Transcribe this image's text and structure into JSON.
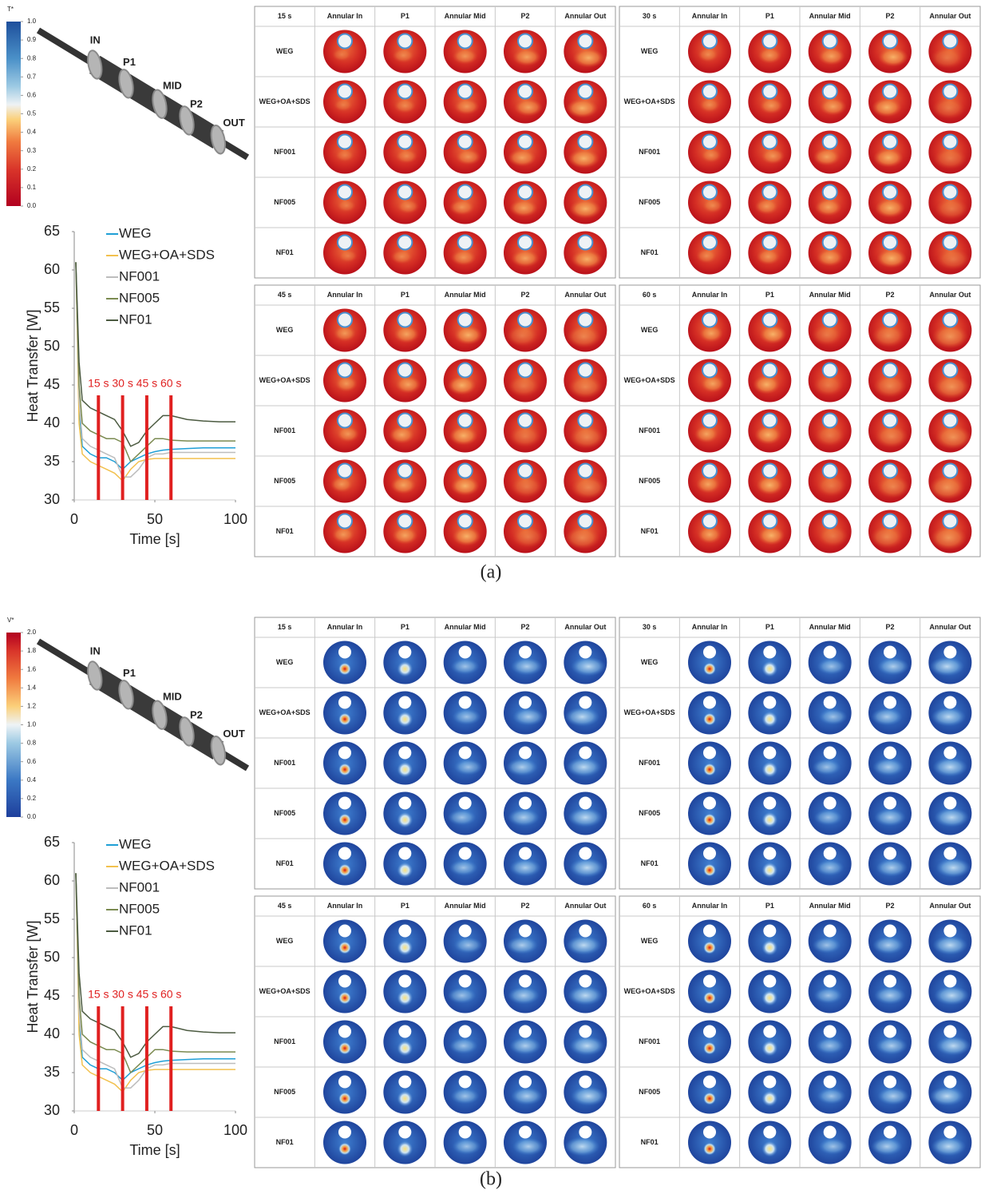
{
  "panels": [
    {
      "caption": "(a)",
      "colorbar": {
        "title": "T*",
        "ticks": [
          {
            "value": 0,
            "label": "0.0"
          },
          {
            "value": 0.1,
            "label": "0.1"
          },
          {
            "value": 0.2,
            "label": "0.2"
          },
          {
            "value": 0.3,
            "label": "0.3"
          },
          {
            "value": 0.4,
            "label": "0.4"
          },
          {
            "value": 0.5,
            "label": "0.5"
          },
          {
            "value": 0.6,
            "label": "0.6"
          },
          {
            "value": 0.7,
            "label": "0.7"
          },
          {
            "value": 0.8,
            "label": "0.8"
          },
          {
            "value": 0.9,
            "label": "0.9"
          },
          {
            "value": 1,
            "label": "1.0"
          }
        ]
      },
      "diagram": {
        "labels": [
          "IN",
          "P1",
          "MID",
          "P2",
          "OUT"
        ]
      },
      "tables": [
        {
          "corner": "15 s",
          "columns": [
            "Annular In",
            "P1",
            "Annular Mid",
            "P2",
            "Annular Out"
          ],
          "rows": [
            "WEG",
            "WEG+OA+SDS",
            "NF001",
            "NF005",
            "NF01"
          ]
        },
        {
          "corner": "30 s",
          "columns": [
            "Annular In",
            "P1",
            "Annular Mid",
            "P2",
            "Annular Out"
          ],
          "rows": [
            "WEG",
            "WEG+OA+SDS",
            "NF001",
            "NF005",
            "NF01"
          ]
        },
        {
          "corner": "45 s",
          "columns": [
            "Annular In",
            "P1",
            "Annular Mid",
            "P2",
            "Annular Out"
          ],
          "rows": [
            "WEG",
            "WEG+OA+SDS",
            "NF001",
            "NF005",
            "NF01"
          ]
        },
        {
          "corner": "60 s",
          "columns": [
            "Annular In",
            "P1",
            "Annular Mid",
            "P2",
            "Annular Out"
          ],
          "rows": [
            "WEG",
            "WEG+OA+SDS",
            "NF001",
            "NF005",
            "NF01"
          ]
        }
      ]
    },
    {
      "caption": "(b)",
      "colorbar": {
        "title": "V*",
        "ticks": [
          {
            "value": 0,
            "label": "0.0"
          },
          {
            "value": 0.2,
            "label": "0.2"
          },
          {
            "value": 0.4,
            "label": "0.4"
          },
          {
            "value": 0.6,
            "label": "0.6"
          },
          {
            "value": 0.8,
            "label": "0.8"
          },
          {
            "value": 1,
            "label": "1.0"
          },
          {
            "value": 1.2,
            "label": "1.2"
          },
          {
            "value": 1.4,
            "label": "1.4"
          },
          {
            "value": 1.6,
            "label": "1.6"
          },
          {
            "value": 1.8,
            "label": "1.8"
          },
          {
            "value": 2,
            "label": "2.0"
          }
        ]
      },
      "diagram": {
        "labels": [
          "IN",
          "P1",
          "MID",
          "P2",
          "OUT"
        ]
      },
      "tables": [
        {
          "corner": "15 s",
          "columns": [
            "Annular In",
            "P1",
            "Annular Mid",
            "P2",
            "Annular Out"
          ],
          "rows": [
            "WEG",
            "WEG+OA+SDS",
            "NF001",
            "NF005",
            "NF01"
          ]
        },
        {
          "corner": "30 s",
          "columns": [
            "Annular In",
            "P1",
            "Annular Mid",
            "P2",
            "Annular Out"
          ],
          "rows": [
            "WEG",
            "WEG+OA+SDS",
            "NF001",
            "NF005",
            "NF01"
          ]
        },
        {
          "corner": "45 s",
          "columns": [
            "Annular In",
            "P1",
            "Annular Mid",
            "P2",
            "Annular Out"
          ],
          "rows": [
            "WEG",
            "WEG+OA+SDS",
            "NF001",
            "NF005",
            "NF01"
          ]
        },
        {
          "corner": "60 s",
          "columns": [
            "Annular In",
            "P1",
            "Annular Mid",
            "P2",
            "Annular Out"
          ],
          "rows": [
            "WEG",
            "WEG+OA+SDS",
            "NF001",
            "NF005",
            "NF01"
          ]
        }
      ]
    }
  ],
  "chart_data": [
    {
      "type": "line",
      "xlabel": "Time [s]",
      "ylabel": "Heat Transfer [W]",
      "x": [
        1,
        3,
        5,
        10,
        15,
        20,
        25,
        30,
        35,
        40,
        45,
        50,
        55,
        60,
        70,
        80,
        90,
        100
      ],
      "series": [
        {
          "name": "WEG",
          "color": "#1f9fd6",
          "values": [
            61,
            42,
            37,
            36,
            35.5,
            35.5,
            35,
            34,
            35,
            35.5,
            36,
            36.3,
            36.5,
            36.6,
            36.7,
            36.8,
            36.8,
            36.8
          ]
        },
        {
          "name": "WEG+OA+SDS",
          "color": "#f2c14e",
          "values": [
            61,
            40,
            36,
            35,
            34.5,
            34,
            33.5,
            32.5,
            34,
            35,
            35.3,
            35.4,
            35.4,
            35.4,
            35.4,
            35.4,
            35.4,
            35.4
          ]
        },
        {
          "name": "NF001",
          "color": "#bdbdbd",
          "values": [
            61,
            43,
            38,
            37,
            36.5,
            36,
            35.5,
            33,
            33,
            34,
            35.5,
            36,
            36,
            36.2,
            36.2,
            36.2,
            36.2,
            36.2
          ]
        },
        {
          "name": "NF005",
          "color": "#7a8a50",
          "values": [
            61,
            45,
            40,
            39,
            38.5,
            38,
            38,
            37.5,
            35,
            36,
            37,
            38,
            38,
            37.8,
            37.7,
            37.7,
            37.7,
            37.7
          ]
        },
        {
          "name": "NF01",
          "color": "#4b5a40",
          "values": [
            61,
            48,
            43,
            42,
            41.5,
            41,
            40.5,
            39,
            37,
            37.5,
            39,
            40,
            41,
            41,
            40.5,
            40.3,
            40.2,
            40.2
          ]
        }
      ],
      "xlim": [
        0,
        100
      ],
      "ylim": [
        30,
        65
      ],
      "xticks": [
        0,
        50,
        100
      ],
      "yticks": [
        30,
        35,
        40,
        45,
        50,
        55,
        60,
        65
      ],
      "legend": "upper left",
      "marker_color": "#e02020",
      "markers": [
        {
          "x": 15,
          "label": "15 s"
        },
        {
          "x": 30,
          "label": "30 s"
        },
        {
          "x": 45,
          "label": "45 s"
        },
        {
          "x": 60,
          "label": "60 s"
        }
      ]
    },
    {
      "type": "line",
      "xlabel": "Time [s]",
      "ylabel": "Heat Transfer [W]",
      "x": [
        1,
        3,
        5,
        10,
        15,
        20,
        25,
        30,
        35,
        40,
        45,
        50,
        55,
        60,
        70,
        80,
        90,
        100
      ],
      "series": [
        {
          "name": "WEG",
          "color": "#1f9fd6",
          "values": [
            61,
            42,
            37,
            36,
            35.5,
            35.5,
            35,
            34,
            35,
            35.5,
            36,
            36.3,
            36.5,
            36.6,
            36.7,
            36.8,
            36.8,
            36.8
          ]
        },
        {
          "name": "WEG+OA+SDS",
          "color": "#f2c14e",
          "values": [
            61,
            40,
            36,
            35,
            34.5,
            34,
            33.5,
            32.5,
            34,
            35,
            35.3,
            35.4,
            35.4,
            35.4,
            35.4,
            35.4,
            35.4,
            35.4
          ]
        },
        {
          "name": "NF001",
          "color": "#bdbdbd",
          "values": [
            61,
            43,
            38,
            37,
            36.5,
            36,
            35.5,
            33,
            33,
            34,
            35.5,
            36,
            36,
            36.2,
            36.2,
            36.2,
            36.2,
            36.2
          ]
        },
        {
          "name": "NF005",
          "color": "#7a8a50",
          "values": [
            61,
            45,
            40,
            39,
            38.5,
            38,
            38,
            37.5,
            35,
            36,
            37,
            38,
            38,
            37.8,
            37.7,
            37.7,
            37.7,
            37.7
          ]
        },
        {
          "name": "NF01",
          "color": "#4b5a40",
          "values": [
            61,
            48,
            43,
            42,
            41.5,
            41,
            40.5,
            39,
            37,
            37.5,
            39,
            40,
            41,
            41,
            40.5,
            40.3,
            40.2,
            40.2
          ]
        }
      ],
      "xlim": [
        0,
        100
      ],
      "ylim": [
        30,
        65
      ],
      "xticks": [
        0,
        50,
        100
      ],
      "yticks": [
        30,
        35,
        40,
        45,
        50,
        55,
        60,
        65
      ],
      "legend": "upper left",
      "marker_color": "#e02020",
      "markers": [
        {
          "x": 15,
          "label": "15 s"
        },
        {
          "x": 30,
          "label": "30 s"
        },
        {
          "x": 45,
          "label": "45 s"
        },
        {
          "x": 60,
          "label": "60 s"
        }
      ]
    }
  ]
}
